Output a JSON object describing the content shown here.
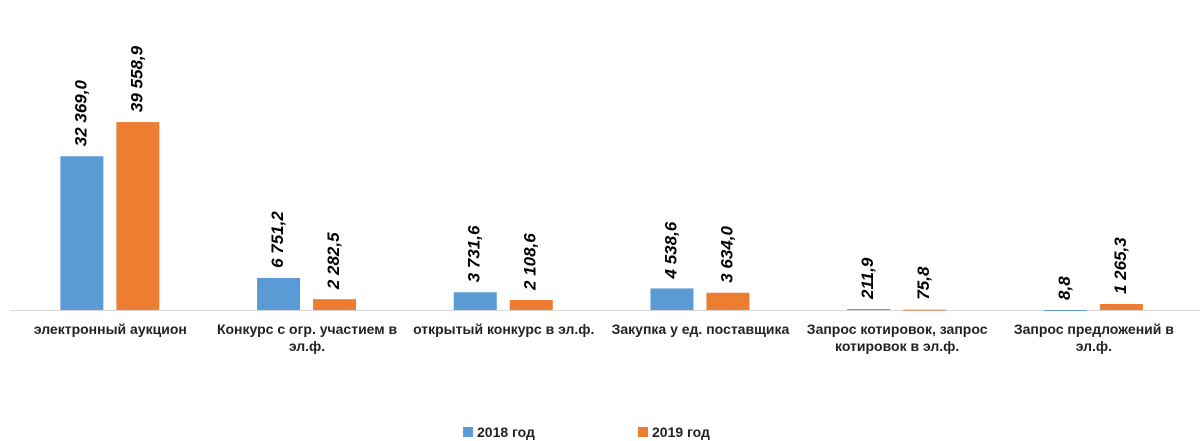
{
  "chart_data": {
    "type": "bar",
    "categories": [
      "электронный аукцион",
      "Конкурс с огр. участием в эл.ф.",
      "открытый конкурс в эл.ф.",
      "Закупка у ед. поставщика",
      "Запрос котировок, запрос котировок в эл.ф.",
      "Запрос предложений в эл.ф."
    ],
    "series": [
      {
        "name": "2018 год",
        "color": "#5b9bd5",
        "values": [
          32369.0,
          6751.2,
          3731.6,
          4538.6,
          211.9,
          8.8
        ],
        "value_labels": [
          "32 369,0",
          "6 751,2",
          "3 731,6",
          "4 538,6",
          "211,9",
          "8,8"
        ]
      },
      {
        "name": "2019 год",
        "color": "#ed7d31",
        "values": [
          39558.9,
          2282.5,
          2108.6,
          3634.0,
          75.8,
          1265.3
        ],
        "value_labels": [
          "39 558,9",
          "2 282,5",
          "2 108,6",
          "3 634,0",
          "75,8",
          "1 265,3"
        ]
      }
    ],
    "ylim": [
      0,
      40000
    ],
    "legend": "bottom"
  }
}
